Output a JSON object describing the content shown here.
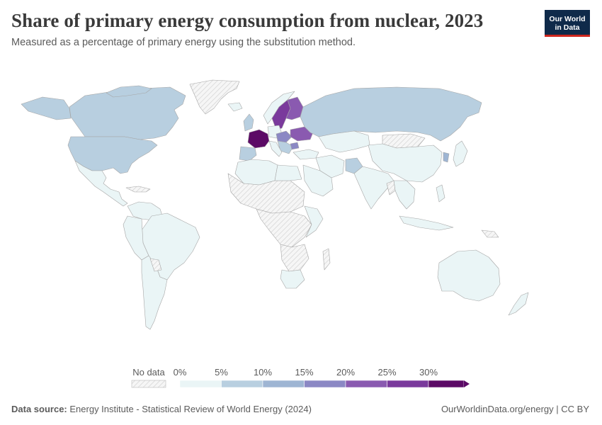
{
  "header": {
    "title": "Share of primary energy consumption from nuclear, 2023",
    "subtitle": "Measured as a percentage of primary energy using the substitution method."
  },
  "logo": {
    "line1": "Our World",
    "line2": "in Data"
  },
  "legend": {
    "no_data_label": "No data",
    "bins": [
      "0%",
      "5%",
      "10%",
      "15%",
      "20%",
      "25%",
      "30%"
    ],
    "colors": [
      "#eaf5f6",
      "#b8cfe0",
      "#9eb5d3",
      "#8b88c4",
      "#8a5ab0",
      "#7a3a9c",
      "#5c0a66"
    ],
    "no_data_color": "#f0f0f0",
    "border_color": "#bbbbbb"
  },
  "map_data": {
    "countries": [
      {
        "name": "France",
        "share_bin": "30%+"
      },
      {
        "name": "Sweden",
        "share_bin": "25-30%"
      },
      {
        "name": "Finland",
        "share_bin": "20-25%"
      },
      {
        "name": "Ukraine",
        "share_bin": "20-25%"
      },
      {
        "name": "Slovakia",
        "share_bin": "20-25%"
      },
      {
        "name": "Bulgaria",
        "share_bin": "15-20%"
      },
      {
        "name": "Belgium",
        "share_bin": "15-20%"
      },
      {
        "name": "Switzerland",
        "share_bin": "15-20%"
      },
      {
        "name": "Czechia",
        "share_bin": "15-20%"
      },
      {
        "name": "Hungary",
        "share_bin": "15-20%"
      },
      {
        "name": "Spain",
        "share_bin": "5-10%"
      },
      {
        "name": "Russia",
        "share_bin": "5-10%"
      },
      {
        "name": "United States",
        "share_bin": "5-10%"
      },
      {
        "name": "Canada",
        "share_bin": "5-10%"
      },
      {
        "name": "South Korea",
        "share_bin": "10-15%"
      },
      {
        "name": "Pakistan",
        "share_bin": "0-5%"
      },
      {
        "name": "China",
        "share_bin": "0-5%"
      },
      {
        "name": "Brazil",
        "share_bin": "0-5%"
      },
      {
        "name": "Australia",
        "share_bin": "0-5%"
      },
      {
        "name": "Greenland",
        "share_bin": "no data"
      }
    ]
  },
  "footer": {
    "source_label": "Data source:",
    "source_text": "Energy Institute - Statistical Review of World Energy (2024)",
    "right_text": "OurWorldinData.org/energy | CC BY"
  }
}
